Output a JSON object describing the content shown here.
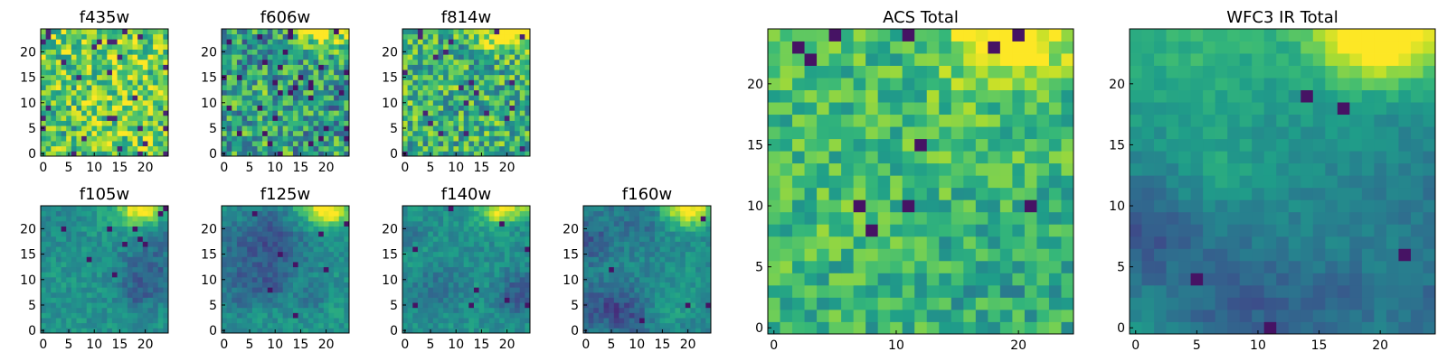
{
  "figure": {
    "description_colormap": "viridis"
  },
  "colors": {
    "viridis": [
      "#440154",
      "#482878",
      "#3e4989",
      "#31688e",
      "#26828e",
      "#1f9e89",
      "#35b779",
      "#6ece58",
      "#b5de2b",
      "#fde725"
    ]
  },
  "chart_data": [
    {
      "id": "f435w",
      "type": "heatmap",
      "title": "f435w",
      "grid_size": [
        25,
        25
      ],
      "xticks": [
        "0",
        "5",
        "10",
        "15",
        "20"
      ],
      "yticks": [
        "0",
        "5",
        "10",
        "15",
        "20"
      ],
      "xlim": [
        -0.5,
        24.5
      ],
      "ylim": [
        -0.5,
        24.5
      ],
      "seed": 11,
      "kind": "noisy_bright"
    },
    {
      "id": "f606w",
      "type": "heatmap",
      "title": "f606w",
      "grid_size": [
        25,
        25
      ],
      "xticks": [
        "0",
        "5",
        "10",
        "15",
        "20"
      ],
      "yticks": [
        "0",
        "5",
        "10",
        "15",
        "20"
      ],
      "xlim": [
        -0.5,
        24.5
      ],
      "ylim": [
        -0.5,
        24.5
      ],
      "seed": 23,
      "kind": "noisy_mid"
    },
    {
      "id": "f814w",
      "type": "heatmap",
      "title": "f814w",
      "grid_size": [
        25,
        25
      ],
      "xticks": [
        "0",
        "5",
        "10",
        "15",
        "20"
      ],
      "yticks": [
        "0",
        "5",
        "10",
        "15",
        "20"
      ],
      "xlim": [
        -0.5,
        24.5
      ],
      "ylim": [
        -0.5,
        24.5
      ],
      "seed": 37,
      "kind": "noisy_bright_corner"
    },
    {
      "id": "f105w",
      "type": "heatmap",
      "title": "f105w",
      "grid_size": [
        25,
        25
      ],
      "xticks": [
        "0",
        "5",
        "10",
        "15",
        "20"
      ],
      "yticks": [
        "0",
        "5",
        "10",
        "15",
        "20"
      ],
      "xlim": [
        -0.5,
        24.5
      ],
      "ylim": [
        -0.5,
        24.5
      ],
      "seed": 41,
      "kind": "smooth_corner"
    },
    {
      "id": "f125w",
      "type": "heatmap",
      "title": "f125w",
      "grid_size": [
        25,
        25
      ],
      "xticks": [
        "0",
        "5",
        "10",
        "15",
        "20"
      ],
      "yticks": [
        "0",
        "5",
        "10",
        "15",
        "20"
      ],
      "xlim": [
        -0.5,
        24.5
      ],
      "ylim": [
        -0.5,
        24.5
      ],
      "seed": 53,
      "kind": "smooth_corner"
    },
    {
      "id": "f140w",
      "type": "heatmap",
      "title": "f140w",
      "grid_size": [
        25,
        25
      ],
      "xticks": [
        "0",
        "5",
        "10",
        "15",
        "20"
      ],
      "yticks": [
        "0",
        "5",
        "10",
        "15",
        "20"
      ],
      "xlim": [
        -0.5,
        24.5
      ],
      "ylim": [
        -0.5,
        24.5
      ],
      "seed": 67,
      "kind": "smooth_corner"
    },
    {
      "id": "f160w",
      "type": "heatmap",
      "title": "f160w",
      "grid_size": [
        25,
        25
      ],
      "xticks": [
        "0",
        "5",
        "10",
        "15",
        "20"
      ],
      "yticks": [
        "0",
        "5",
        "10",
        "15",
        "20"
      ],
      "xlim": [
        -0.5,
        24.5
      ],
      "ylim": [
        -0.5,
        24.5
      ],
      "seed": 79,
      "kind": "smooth_corner_dark"
    },
    {
      "id": "acs-total",
      "type": "heatmap",
      "title": "ACS Total",
      "grid_size": [
        25,
        25
      ],
      "xticks": [
        "0",
        "10",
        "20"
      ],
      "yticks": [
        "0",
        "5",
        "10",
        "15",
        "20"
      ],
      "xlim": [
        -0.5,
        24.5
      ],
      "ylim": [
        -0.5,
        24.5
      ],
      "seed": 97,
      "kind": "acs_total"
    },
    {
      "id": "wfc3-ir-total",
      "type": "heatmap",
      "title": "WFC3 IR Total",
      "grid_size": [
        25,
        25
      ],
      "xticks": [
        "0",
        "5",
        "10",
        "15",
        "20"
      ],
      "yticks": [
        "0",
        "5",
        "10",
        "15",
        "20"
      ],
      "xlim": [
        -0.5,
        24.5
      ],
      "ylim": [
        -0.5,
        24.5
      ],
      "seed": 113,
      "kind": "ir_total"
    }
  ]
}
